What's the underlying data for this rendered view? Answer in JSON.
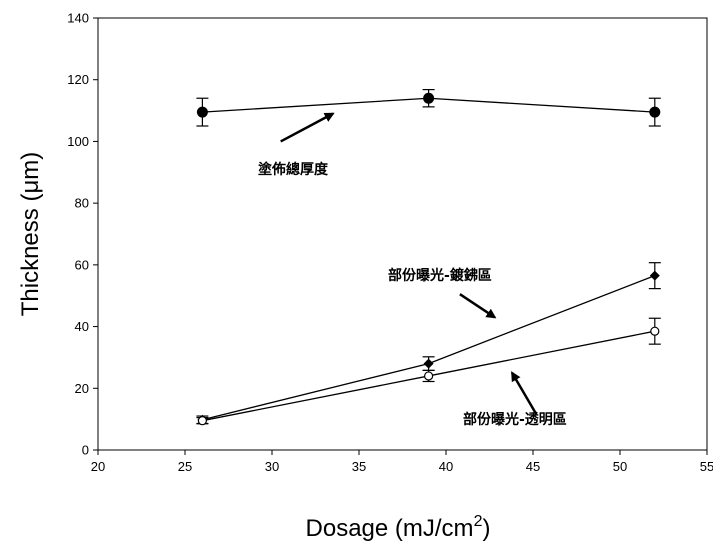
{
  "chart_data": {
    "type": "line",
    "xlabel": "Dosage (mJ/cm",
    "xlabel_sup": "2",
    "xlabel_end": ")",
    "ylabel": "Thickness (μm)",
    "xlim": [
      20,
      55
    ],
    "ylim": [
      0,
      140
    ],
    "xticks": [
      20,
      25,
      30,
      35,
      40,
      45,
      50,
      55
    ],
    "yticks": [
      0,
      20,
      40,
      60,
      80,
      100,
      120,
      140
    ],
    "grid": false,
    "series": [
      {
        "key": "total",
        "x": [
          26,
          39,
          52
        ],
        "y": [
          109.5,
          114,
          109.5
        ],
        "err": [
          4.5,
          2.8,
          4.5
        ],
        "marker": "filled-circle",
        "color": "#000000"
      },
      {
        "key": "chrome",
        "x": [
          26,
          39,
          52
        ],
        "y": [
          9.8,
          28,
          56.5
        ],
        "err": [
          1.2,
          2.2,
          4.2
        ],
        "marker": "filled-diamond",
        "color": "#000000"
      },
      {
        "key": "clear",
        "x": [
          26,
          39,
          52
        ],
        "y": [
          9.5,
          24,
          38.5
        ],
        "err": [
          1.0,
          1.8,
          4.2
        ],
        "marker": "open-circle",
        "color": "#000000"
      }
    ],
    "annotations": [
      {
        "text": "塗佈總厚度",
        "arrow_from": [
          30.5,
          100
        ],
        "arrow_to": [
          33.5,
          109
        ]
      },
      {
        "text": "部份曝光-鍍鉘區",
        "arrow_from": [
          40.8,
          50.5
        ],
        "arrow_to": [
          42.8,
          43
        ]
      },
      {
        "text": "部份曝光-透明區",
        "arrow_from": [
          45.2,
          11.5
        ],
        "arrow_to": [
          43.8,
          25
        ]
      }
    ]
  }
}
